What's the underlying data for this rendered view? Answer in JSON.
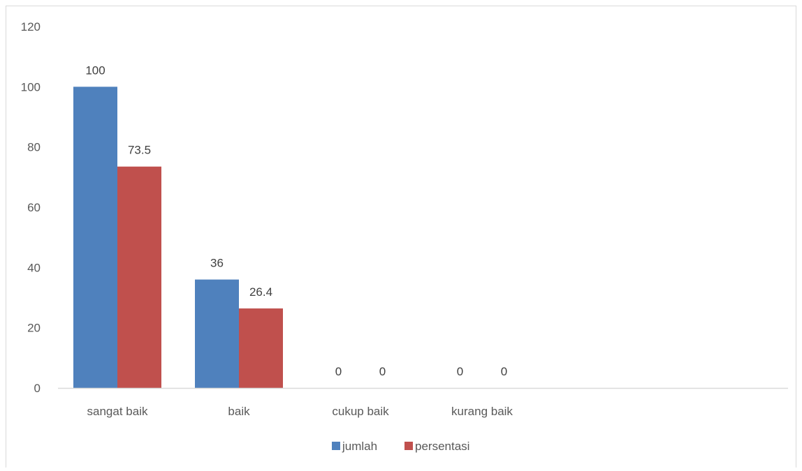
{
  "chart_data": {
    "type": "bar",
    "categories": [
      "sangat baik",
      "baik",
      "cukup baik",
      "kurang baik"
    ],
    "series": [
      {
        "name": "jumlah",
        "values": [
          100,
          36,
          0,
          0
        ],
        "labels": [
          "100",
          "36",
          "0",
          "0"
        ]
      },
      {
        "name": "persentasi",
        "values": [
          73.5,
          26.4,
          0,
          0
        ],
        "labels": [
          "73.5",
          "26.4",
          "0",
          "0"
        ]
      }
    ],
    "ylim": [
      0,
      120
    ],
    "yticks": [
      "0",
      "20",
      "40",
      "60",
      "80",
      "100",
      "120"
    ],
    "grid": false,
    "legend_position": "bottom",
    "colors": {
      "jumlah": "#4f81bd",
      "persentasi": "#c0504d",
      "axis": "#d9d9d9"
    }
  }
}
